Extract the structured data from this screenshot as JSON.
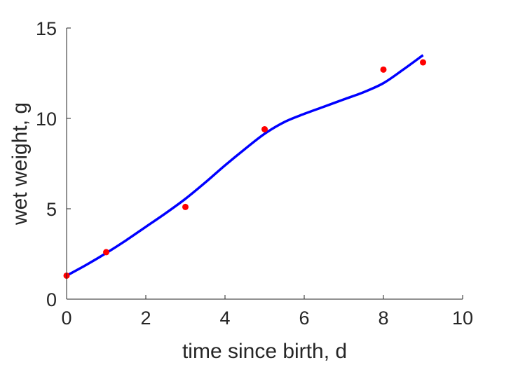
{
  "chart_data": {
    "type": "scatter",
    "xlabel": "time since birth, d",
    "ylabel": "wet weight, g",
    "xlim": [
      0,
      10
    ],
    "ylim": [
      0,
      15
    ],
    "xticks": [
      "0",
      "2",
      "4",
      "6",
      "8",
      "10"
    ],
    "yticks": [
      "0",
      "5",
      "10",
      "15"
    ],
    "grid": false,
    "box": false,
    "series": [
      {
        "kind": "points",
        "color": "#ff0000",
        "x": [
          0,
          1,
          3,
          5,
          8,
          9
        ],
        "y": [
          1.3,
          2.6,
          5.1,
          9.4,
          12.7,
          13.1
        ]
      },
      {
        "kind": "line",
        "color": "#0000ff",
        "x": [
          0,
          0.5,
          1,
          1.5,
          2,
          2.5,
          3,
          3.5,
          4,
          4.5,
          5,
          5.5,
          6,
          6.5,
          7,
          7.5,
          8,
          8.5,
          9
        ],
        "y": [
          1.3,
          1.9,
          2.55,
          3.25,
          4.0,
          4.75,
          5.55,
          6.45,
          7.4,
          8.3,
          9.15,
          9.8,
          10.25,
          10.65,
          11.05,
          11.45,
          11.95,
          12.7,
          13.5
        ]
      }
    ]
  }
}
